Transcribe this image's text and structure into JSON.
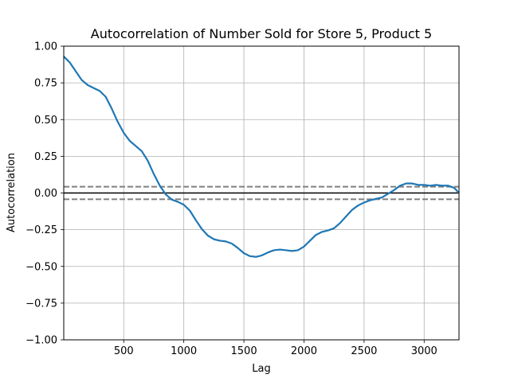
{
  "chart_data": {
    "type": "line",
    "title": "Autocorrelation of Number Sold for Store 5, Product 5",
    "xlabel": "Lag",
    "ylabel": "Autocorrelation",
    "xlim": [
      1,
      3290
    ],
    "ylim": [
      -1.0,
      1.0
    ],
    "x_ticks": [
      500,
      1000,
      1500,
      2000,
      2500,
      3000
    ],
    "y_ticks": [
      -1.0,
      -0.75,
      -0.5,
      -0.25,
      0.0,
      0.25,
      0.5,
      0.75,
      1.0
    ],
    "y_tick_labels": [
      "−1.00",
      "−0.75",
      "−0.50",
      "−0.25",
      "0.00",
      "0.25",
      "0.50",
      "0.75",
      "1.00"
    ],
    "grid": true,
    "reference_lines": [
      {
        "y": 0.0,
        "style": "solid",
        "color": "#000000"
      },
      {
        "y": 0.043,
        "style": "dashed",
        "color": "#808080"
      },
      {
        "y": -0.043,
        "style": "dashed",
        "color": "#808080"
      }
    ],
    "series": [
      {
        "color": "#1f77b4",
        "x": [
          1,
          50,
          100,
          150,
          200,
          250,
          300,
          350,
          400,
          450,
          500,
          550,
          600,
          650,
          700,
          750,
          800,
          850,
          900,
          950,
          1000,
          1050,
          1100,
          1150,
          1200,
          1250,
          1300,
          1350,
          1400,
          1450,
          1500,
          1550,
          1600,
          1650,
          1700,
          1750,
          1800,
          1850,
          1900,
          1950,
          2000,
          2050,
          2100,
          2150,
          2200,
          2250,
          2300,
          2350,
          2400,
          2450,
          2500,
          2550,
          2600,
          2650,
          2700,
          2750,
          2800,
          2850,
          2900,
          2950,
          3000,
          3050,
          3100,
          3150,
          3200,
          3250,
          3290
        ],
        "y": [
          0.93,
          0.89,
          0.83,
          0.77,
          0.735,
          0.715,
          0.695,
          0.655,
          0.575,
          0.485,
          0.41,
          0.355,
          0.32,
          0.285,
          0.22,
          0.13,
          0.05,
          -0.01,
          -0.045,
          -0.06,
          -0.08,
          -0.12,
          -0.185,
          -0.245,
          -0.29,
          -0.315,
          -0.325,
          -0.33,
          -0.345,
          -0.375,
          -0.41,
          -0.43,
          -0.435,
          -0.425,
          -0.405,
          -0.39,
          -0.385,
          -0.39,
          -0.395,
          -0.39,
          -0.365,
          -0.325,
          -0.285,
          -0.265,
          -0.255,
          -0.24,
          -0.205,
          -0.16,
          -0.115,
          -0.085,
          -0.065,
          -0.05,
          -0.04,
          -0.03,
          -0.005,
          0.02,
          0.05,
          0.065,
          0.065,
          0.055,
          0.055,
          0.05,
          0.055,
          0.05,
          0.05,
          0.035,
          0.0
        ]
      }
    ]
  }
}
